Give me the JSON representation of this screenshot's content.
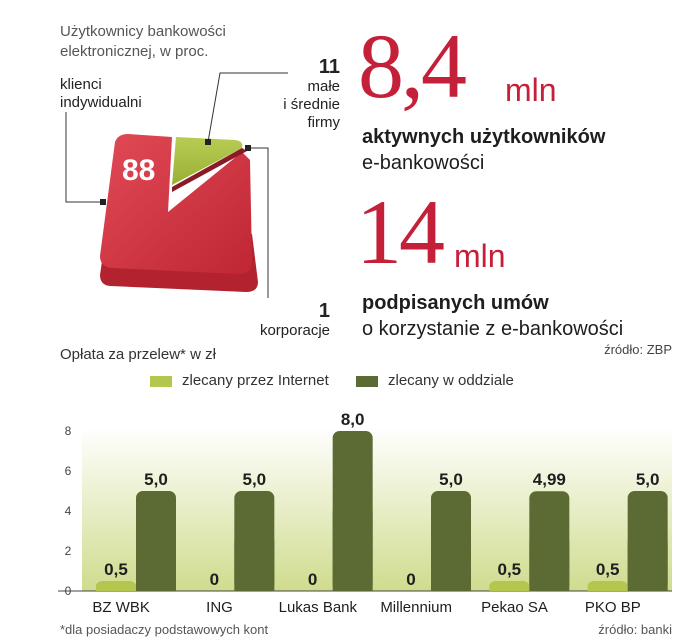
{
  "pie": {
    "caption_line1": "Użytkownicy bankowości",
    "caption_line2": "elektronicznej, w proc.",
    "segments": [
      {
        "label_line1": "klienci",
        "label_line2": "indywidualni",
        "label_line3": "",
        "value": 88,
        "value_label": "88",
        "color": "#d0343f"
      },
      {
        "label_line1": "małe",
        "label_line2": "i średnie",
        "label_line3": "firmy",
        "value": 11,
        "value_label": "11",
        "color": "#a6be3c"
      },
      {
        "label_line1": "korporacje",
        "label_line2": "",
        "label_line3": "",
        "value": 1,
        "value_label": "1",
        "color": "#8a1a25"
      }
    ]
  },
  "stats": [
    {
      "number": "8,4",
      "unit": "mln",
      "desc_line1": "aktywnych użytkowników",
      "desc_line2": "e-bankowości"
    },
    {
      "number": "14",
      "unit": "mln",
      "desc_line1": "podpisanych umów",
      "desc_line2": "o korzystanie z e-bankowości"
    }
  ],
  "stats_source": "źródło: ZBP",
  "chart_data": {
    "type": "bar",
    "title": "Opłata za przelew* w zł",
    "categories": [
      "BZ WBK",
      "ING",
      "Lukas Bank",
      "Millennium",
      "Pekao SA",
      "PKO BP"
    ],
    "series": [
      {
        "name": "zlecany przez Internet",
        "color": "#b4c64e",
        "values": [
          0.5,
          0,
          0,
          0,
          0.5,
          0.5
        ],
        "labels": [
          "0,5",
          "0",
          "0",
          "0",
          "0,5",
          "0,5"
        ]
      },
      {
        "name": "zlecany w oddziale",
        "color": "#5c6b34",
        "values": [
          5.0,
          5.0,
          8.0,
          5.0,
          4.99,
          5.0
        ],
        "labels": [
          "5,0",
          "5,0",
          "8,0",
          "5,0",
          "4,99",
          "5,0"
        ]
      }
    ],
    "yticks": [
      "0",
      "2",
      "4",
      "6",
      "8"
    ],
    "ytick_values": [
      0,
      2,
      4,
      6,
      8
    ],
    "ylim": [
      0,
      8
    ],
    "grid": false,
    "legend": "top",
    "footnote": "*dla posiadaczy podstawowych kont",
    "source": "źródło: banki"
  }
}
